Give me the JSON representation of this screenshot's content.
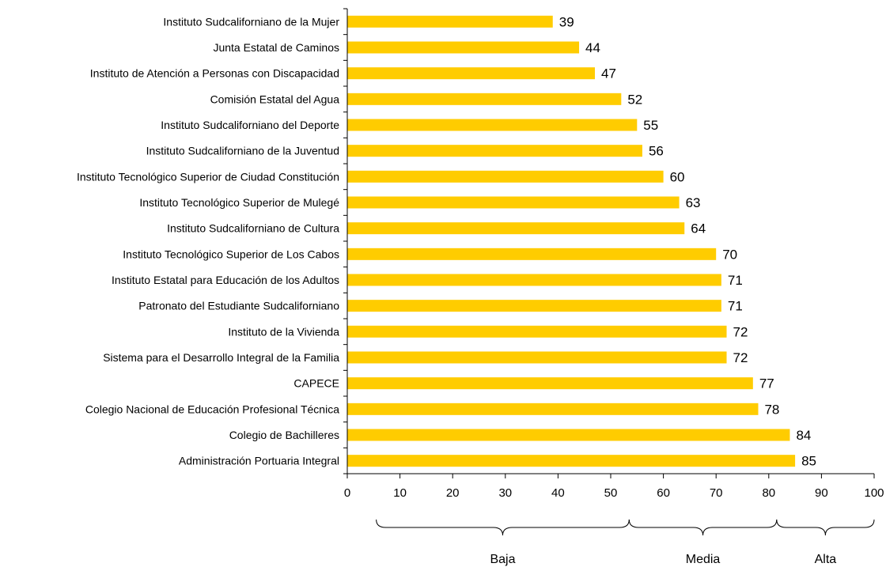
{
  "chart_data": {
    "type": "bar",
    "orientation": "horizontal",
    "categories": [
      "Instituto Sudcaliforniano de la Mujer",
      "Junta Estatal de Caminos",
      "Instituto de Atención a Personas con Discapacidad",
      "Comisión Estatal del Agua",
      "Instituto Sudcaliforniano del Deporte",
      "Instituto Sudcaliforniano de la Juventud",
      "Instituto Tecnológico  Superior de Ciudad Constitución",
      "Instituto Tecnológico Superior de Mulegé",
      "Instituto Sudcaliforniano de Cultura",
      "Instituto Tecnológico Superior de Los Cabos",
      "Instituto Estatal para Educación de los Adultos",
      "Patronato del Estudiante Sudcaliforniano",
      "Instituto de la Vivienda",
      "Sistema para el Desarrollo Integral de la Familia",
      "CAPECE",
      "Colegio Nacional de Educación Profesional Técnica",
      "Colegio de Bachilleres",
      "Administración Portuaria Integral"
    ],
    "values": [
      39,
      44,
      47,
      52,
      55,
      56,
      60,
      63,
      64,
      70,
      71,
      71,
      72,
      72,
      77,
      78,
      84,
      85
    ],
    "data_labels": [
      "39",
      "44",
      "47",
      "52",
      "55",
      "56",
      "60",
      "63",
      "64",
      "70",
      "71",
      "71",
      "72",
      "72",
      "77",
      "78",
      "84",
      "85"
    ],
    "xlim": [
      0,
      100
    ],
    "xticks": [
      "0",
      "10",
      "20",
      "30",
      "40",
      "50",
      "60",
      "70",
      "80",
      "90",
      "100"
    ],
    "title": "",
    "xlabel": "",
    "ylabel": "",
    "grid": false,
    "legend": "none",
    "bar_color": "#FFCC00",
    "ranges": [
      {
        "label": "Baja",
        "from": 5.5,
        "to": 53.5
      },
      {
        "label": "Media",
        "from": 53.5,
        "to": 81.5
      },
      {
        "label": "Alta",
        "from": 81.5,
        "to": 100
      }
    ]
  }
}
